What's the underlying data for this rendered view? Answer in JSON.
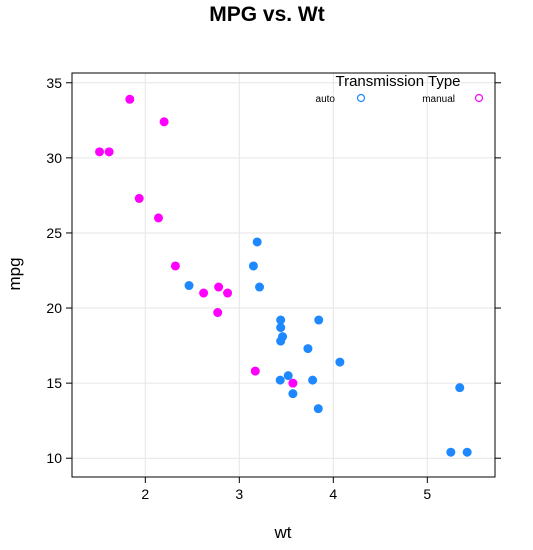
{
  "chart_data": {
    "type": "scatter",
    "title": "MPG vs. Wt",
    "xlabel": "wt",
    "ylabel": "mpg",
    "xlim": [
      1.22,
      5.72
    ],
    "ylim": [
      8.75,
      35.65
    ],
    "xticks": [
      2,
      3,
      4,
      5
    ],
    "yticks": [
      10,
      15,
      20,
      25,
      30,
      35
    ],
    "grid": true,
    "legend": {
      "title": "Transmission Type",
      "placement": "top-right",
      "entries": [
        {
          "label": "auto",
          "color": "#1e88ff"
        },
        {
          "label": "manual",
          "color": "#ff00ff"
        }
      ]
    },
    "series": [
      {
        "name": "auto",
        "color": "#1e88ff",
        "points": [
          {
            "x": 3.19,
            "y": 24.4
          },
          {
            "x": 3.15,
            "y": 22.8
          },
          {
            "x": 3.215,
            "y": 21.4
          },
          {
            "x": 2.465,
            "y": 21.5
          },
          {
            "x": 3.44,
            "y": 19.2
          },
          {
            "x": 3.845,
            "y": 19.2
          },
          {
            "x": 3.44,
            "y": 18.7
          },
          {
            "x": 3.46,
            "y": 18.1
          },
          {
            "x": 3.44,
            "y": 17.8
          },
          {
            "x": 3.73,
            "y": 17.3
          },
          {
            "x": 4.07,
            "y": 16.4
          },
          {
            "x": 3.52,
            "y": 15.5
          },
          {
            "x": 3.435,
            "y": 15.2
          },
          {
            "x": 3.78,
            "y": 15.2
          },
          {
            "x": 3.57,
            "y": 14.3
          },
          {
            "x": 5.345,
            "y": 14.7
          },
          {
            "x": 3.84,
            "y": 13.3
          },
          {
            "x": 5.25,
            "y": 10.4
          },
          {
            "x": 5.424,
            "y": 10.4
          }
        ]
      },
      {
        "name": "manual",
        "color": "#ff00ff",
        "points": [
          {
            "x": 1.835,
            "y": 33.9
          },
          {
            "x": 2.2,
            "y": 32.4
          },
          {
            "x": 1.513,
            "y": 30.4
          },
          {
            "x": 1.615,
            "y": 30.4
          },
          {
            "x": 1.935,
            "y": 27.3
          },
          {
            "x": 2.14,
            "y": 26.0
          },
          {
            "x": 2.32,
            "y": 22.8
          },
          {
            "x": 2.62,
            "y": 21.0
          },
          {
            "x": 2.875,
            "y": 21.0
          },
          {
            "x": 2.78,
            "y": 21.4
          },
          {
            "x": 2.77,
            "y": 19.7
          },
          {
            "x": 3.17,
            "y": 15.8
          },
          {
            "x": 3.57,
            "y": 15.0
          }
        ]
      }
    ]
  }
}
